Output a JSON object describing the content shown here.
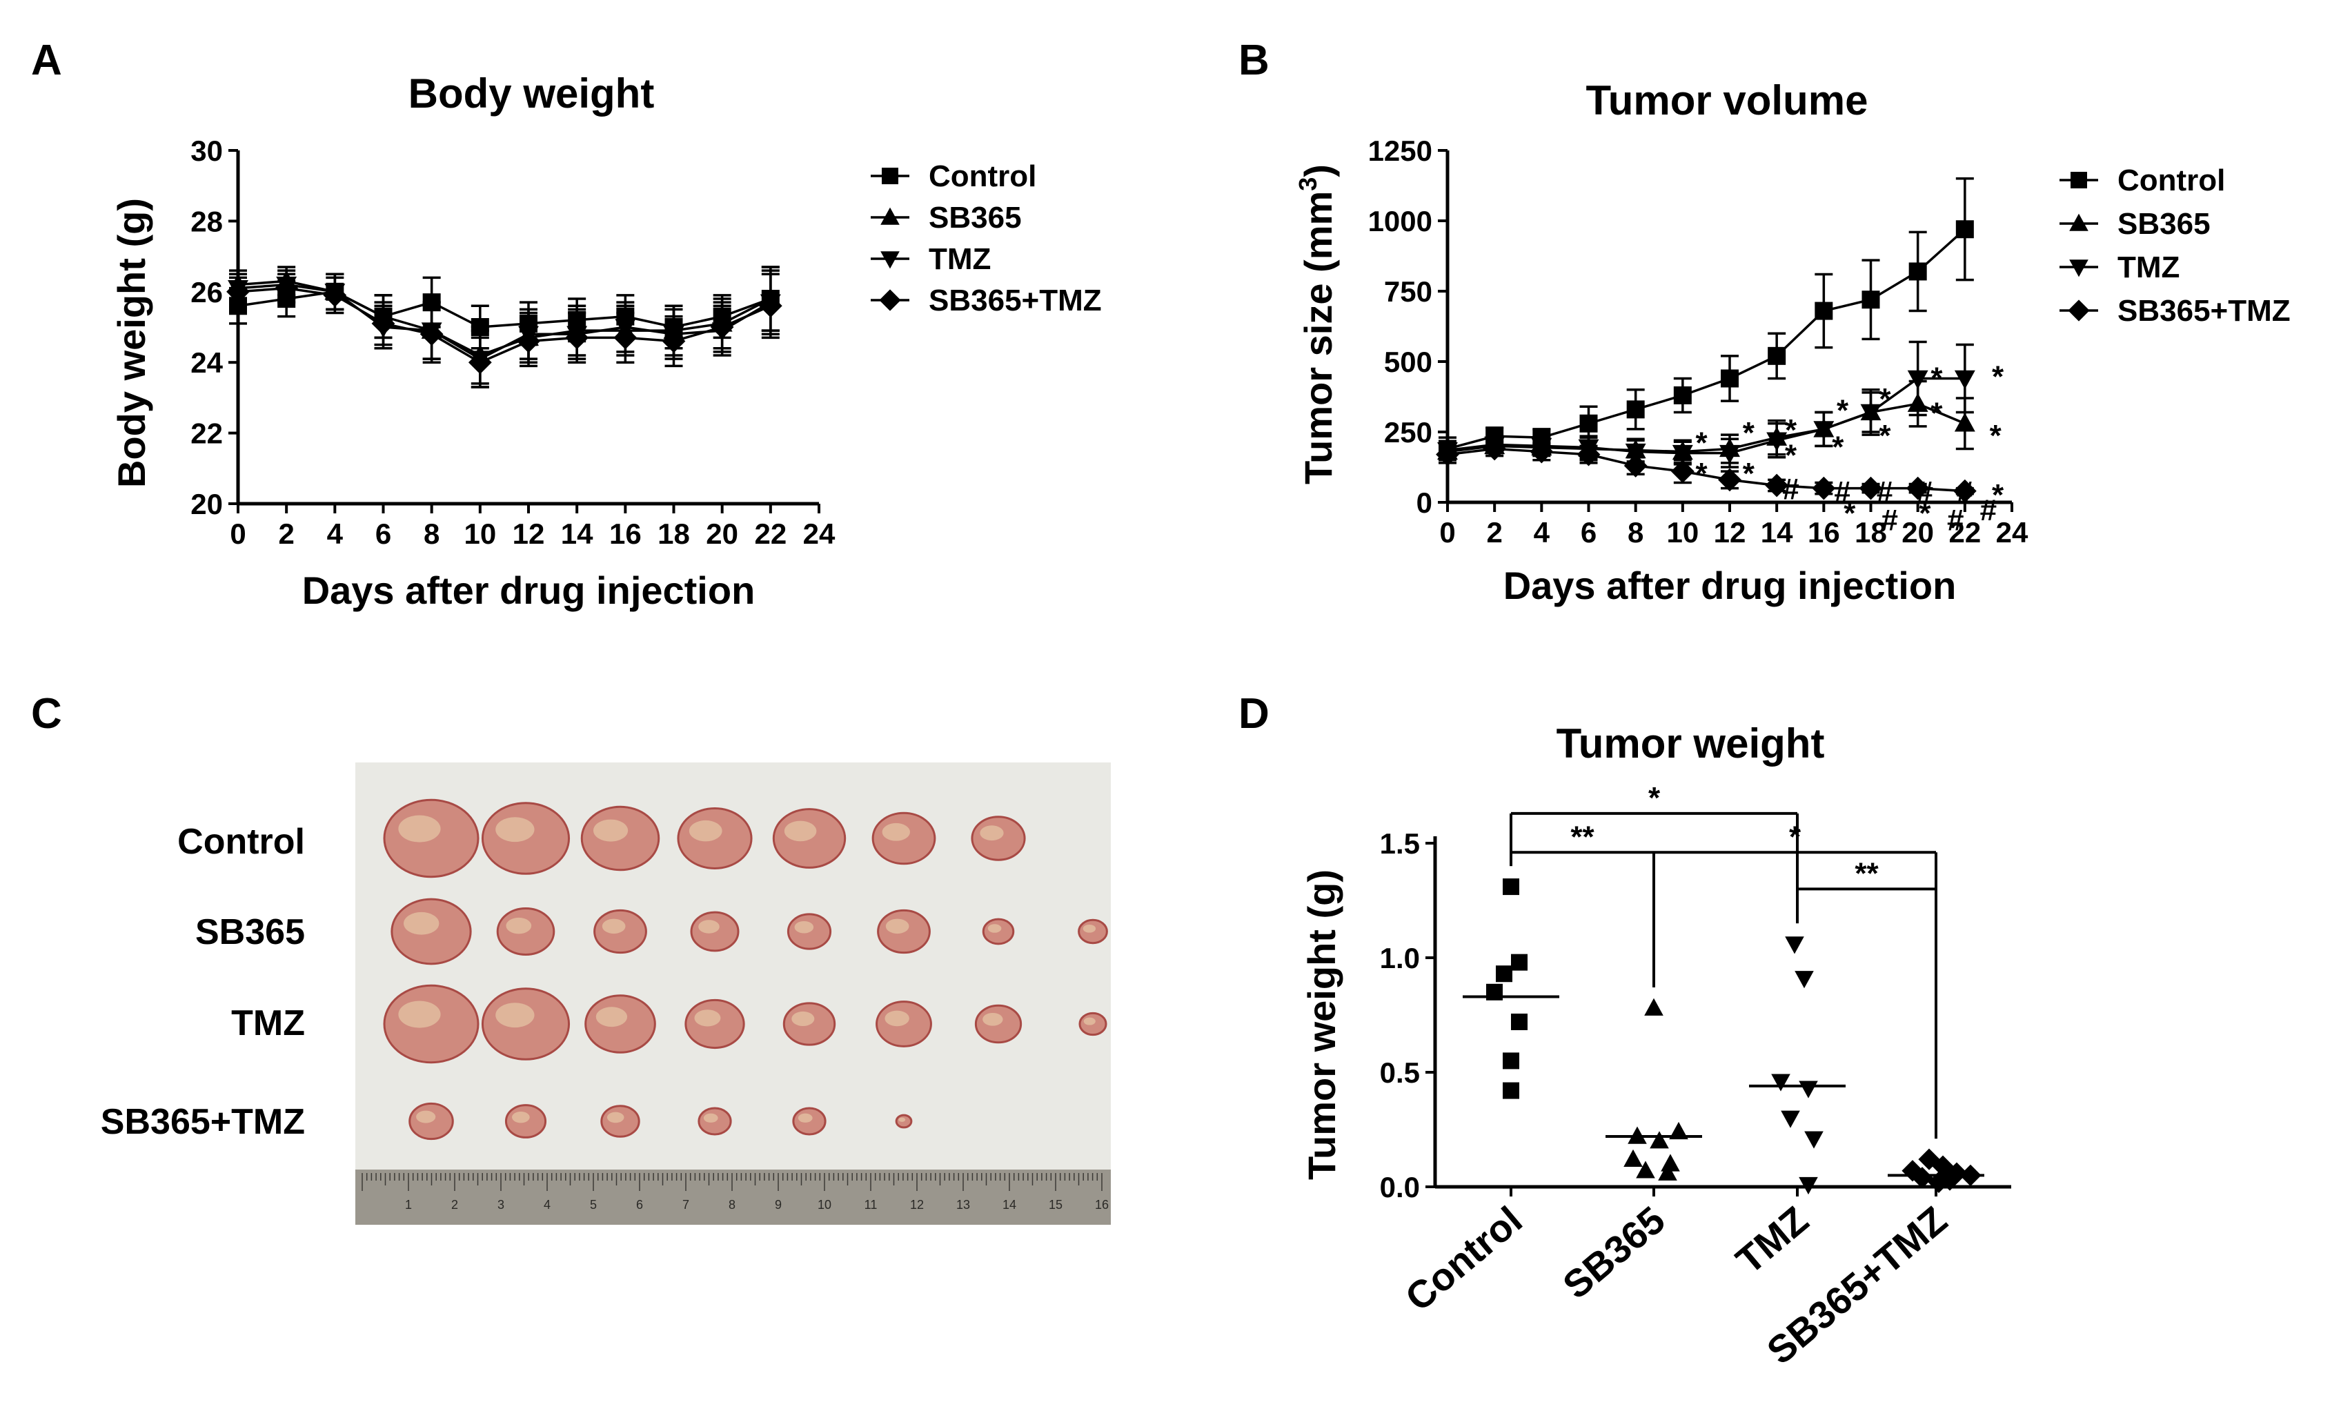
{
  "colors": {
    "ink": "#000000",
    "background": "#ffffff",
    "photo_bg": "#e9e9e4",
    "tumor": "#cf8a7e",
    "tumor_dark": "#a84a45",
    "tumor_light": "#e6c7a6",
    "ruler": "#9a968d"
  },
  "panels": {
    "A": "A",
    "B": "B",
    "C": "C",
    "D": "D"
  },
  "chart_data": [
    {
      "id": "body_weight",
      "type": "line",
      "title": "Body weight",
      "xlabel": "Days after drug injection",
      "ylabel": "Body weight (g)",
      "xlim": [
        0,
        24
      ],
      "ylim": [
        20,
        30
      ],
      "xticks": [
        "0",
        "2",
        "4",
        "6",
        "8",
        "10",
        "12",
        "14",
        "16",
        "18",
        "20",
        "22",
        "24"
      ],
      "yticks": [
        "20",
        "22",
        "24",
        "26",
        "28",
        "30"
      ],
      "x": [
        0,
        2,
        4,
        6,
        8,
        10,
        12,
        14,
        16,
        18,
        20,
        22
      ],
      "legend": [
        "Control",
        "SB365",
        "TMZ",
        "SB365+TMZ"
      ],
      "series": [
        {
          "name": "Control",
          "marker": "square",
          "values": [
            25.6,
            25.8,
            26.0,
            25.3,
            25.7,
            25.0,
            25.1,
            25.2,
            25.3,
            25.0,
            25.3,
            25.8
          ],
          "errors": [
            0.5,
            0.5,
            0.5,
            0.6,
            0.7,
            0.6,
            0.6,
            0.6,
            0.6,
            0.6,
            0.6,
            0.9
          ]
        },
        {
          "name": "SB365",
          "marker": "triangle-up",
          "values": [
            26.2,
            26.3,
            26.0,
            25.3,
            24.9,
            24.2,
            24.7,
            24.9,
            24.9,
            24.9,
            25.1,
            25.8
          ],
          "errors": [
            0.4,
            0.4,
            0.5,
            0.6,
            0.8,
            0.8,
            0.7,
            0.7,
            0.7,
            0.7,
            0.7,
            0.9
          ]
        },
        {
          "name": "TMZ",
          "marker": "triangle-down",
          "values": [
            26.1,
            26.2,
            26.0,
            25.0,
            24.9,
            24.1,
            24.8,
            24.8,
            25.0,
            24.8,
            24.9,
            25.7
          ],
          "errors": [
            0.4,
            0.4,
            0.5,
            0.6,
            0.8,
            0.8,
            0.7,
            0.7,
            0.7,
            0.7,
            0.7,
            0.9
          ]
        },
        {
          "name": "SB365+TMZ",
          "marker": "diamond",
          "values": [
            26.0,
            26.1,
            25.9,
            25.1,
            24.8,
            24.0,
            24.6,
            24.7,
            24.7,
            24.6,
            25.0,
            25.6
          ],
          "errors": [
            0.4,
            0.4,
            0.5,
            0.6,
            0.8,
            0.7,
            0.7,
            0.7,
            0.7,
            0.7,
            0.7,
            0.9
          ]
        }
      ]
    },
    {
      "id": "tumor_volume",
      "type": "line",
      "title": "Tumor volume",
      "xlabel": "Days after drug injection",
      "ylabel": "Tumor size (mm",
      "ylabel_sup": "3",
      "ylabel_end": ")",
      "xlim": [
        0,
        24
      ],
      "ylim": [
        0,
        1250
      ],
      "xticks": [
        "0",
        "2",
        "4",
        "6",
        "8",
        "10",
        "12",
        "14",
        "16",
        "18",
        "20",
        "22",
        "24"
      ],
      "yticks": [
        "0",
        "250",
        "500",
        "750",
        "1000",
        "1250"
      ],
      "x": [
        0,
        2,
        4,
        6,
        8,
        10,
        12,
        14,
        16,
        18,
        20,
        22
      ],
      "legend": [
        "Control",
        "SB365",
        "TMZ",
        "SB365+TMZ"
      ],
      "series": [
        {
          "name": "Control",
          "marker": "square",
          "values": [
            190,
            235,
            230,
            280,
            330,
            380,
            440,
            520,
            680,
            720,
            820,
            970
          ],
          "errors": [
            40,
            30,
            30,
            60,
            70,
            60,
            80,
            80,
            130,
            140,
            140,
            180
          ]
        },
        {
          "name": "SB365",
          "marker": "triangle-up",
          "values": [
            180,
            200,
            195,
            190,
            185,
            180,
            190,
            230,
            260,
            320,
            350,
            280
          ],
          "errors": [
            30,
            25,
            30,
            40,
            40,
            40,
            50,
            60,
            60,
            70,
            80,
            90
          ]
        },
        {
          "name": "TMZ",
          "marker": "triangle-down",
          "values": [
            185,
            205,
            200,
            195,
            180,
            175,
            175,
            220,
            260,
            320,
            440,
            440
          ],
          "errors": [
            30,
            25,
            30,
            40,
            40,
            40,
            50,
            60,
            60,
            80,
            130,
            120
          ]
        },
        {
          "name": "SB365+TMZ",
          "marker": "diamond",
          "values": [
            170,
            190,
            180,
            170,
            130,
            110,
            80,
            60,
            50,
            50,
            50,
            40
          ],
          "errors": [
            30,
            25,
            30,
            30,
            30,
            40,
            30,
            20,
            20,
            15,
            15,
            10
          ]
        }
      ],
      "annotations": [
        {
          "text": "*",
          "x": 10.8,
          "y": 215
        },
        {
          "text": "*",
          "x": 12.8,
          "y": 250
        },
        {
          "text": "*",
          "x": 14.6,
          "y": 260
        },
        {
          "text": "*",
          "x": 16.8,
          "y": 330
        },
        {
          "text": "*",
          "x": 18.6,
          "y": 370
        },
        {
          "text": "*",
          "x": 20.8,
          "y": 445
        },
        {
          "text": "*",
          "x": 23.4,
          "y": 450
        },
        {
          "text": "*",
          "x": 10.8,
          "y": 105
        },
        {
          "text": "*",
          "x": 12.8,
          "y": 105
        },
        {
          "text": "*",
          "x": 14.6,
          "y": 170
        },
        {
          "text": "*",
          "x": 16.6,
          "y": 200
        },
        {
          "text": "*",
          "x": 18.6,
          "y": 240
        },
        {
          "text": "*",
          "x": 20.8,
          "y": 320
        },
        {
          "text": "*",
          "x": 23.3,
          "y": 240
        },
        {
          "text": "#",
          "x": 14.6,
          "y": 50
        },
        {
          "text": "#",
          "x": 16.8,
          "y": 40
        },
        {
          "text": "#",
          "x": 18.6,
          "y": 40
        },
        {
          "text": "#",
          "x": 20.3,
          "y": 40
        },
        {
          "text": "#",
          "x": 22.0,
          "y": 40
        },
        {
          "text": "*",
          "x": 23.4,
          "y": 30
        },
        {
          "text": "*",
          "x": 17.1,
          "y": -35
        },
        {
          "text": "#",
          "x": 18.8,
          "y": -60
        },
        {
          "text": "*",
          "x": 20.3,
          "y": -35
        },
        {
          "text": "#",
          "x": 21.6,
          "y": -60
        },
        {
          "text": "#",
          "x": 23.0,
          "y": -25
        }
      ]
    },
    {
      "id": "tumor_weight",
      "type": "scatter",
      "title": "Tumor weight",
      "ylabel": "Tumor weight (g)",
      "ylim": [
        0,
        1.5
      ],
      "yticks": [
        "0.0",
        "0.5",
        "1.0",
        "1.5"
      ],
      "categories": [
        "Control",
        "SB365",
        "TMZ",
        "SB365+TMZ"
      ],
      "series": [
        {
          "name": "Control",
          "marker": "square",
          "points": [
            1.31,
            0.98,
            0.93,
            0.85,
            0.72,
            0.55,
            0.42
          ],
          "xoff": [
            0,
            0.06,
            -0.05,
            -0.12,
            0.06,
            0,
            0
          ],
          "mean": 0.83
        },
        {
          "name": "SB365",
          "marker": "triangle-up",
          "points": [
            0.78,
            0.24,
            0.22,
            0.2,
            0.12,
            0.1,
            0.07,
            0.06
          ],
          "xoff": [
            0,
            0.18,
            -0.12,
            0.04,
            -0.15,
            0.12,
            -0.06,
            0.1
          ],
          "mean": 0.22
        },
        {
          "name": "TMZ",
          "marker": "triangle-down",
          "points": [
            1.06,
            0.91,
            0.46,
            0.43,
            0.3,
            0.21,
            0.01
          ],
          "xoff": [
            -0.02,
            0.05,
            -0.12,
            0.08,
            -0.05,
            0.12,
            0.08
          ],
          "mean": 0.44
        },
        {
          "name": "SB365+TMZ",
          "marker": "diamond",
          "points": [
            0.12,
            0.09,
            0.07,
            0.06,
            0.05,
            0.04,
            0.03,
            0.02
          ],
          "xoff": [
            -0.05,
            0.05,
            -0.17,
            0.15,
            0.25,
            -0.1,
            0.1,
            0.02
          ],
          "mean": 0.05
        }
      ],
      "comparisons": [
        {
          "a": 0,
          "b": 2,
          "y": 1.63,
          "label": "*"
        },
        {
          "a": 0,
          "b": 1,
          "y": 1.46,
          "label": "**"
        },
        {
          "a": 1,
          "b": 3,
          "y": 1.46,
          "label": "*"
        },
        {
          "a": 2,
          "b": 3,
          "y": 1.3,
          "label": "**"
        }
      ]
    }
  ],
  "photo": {
    "rows": [
      "Control",
      "SB365",
      "TMZ",
      "SB365+TMZ"
    ],
    "counts": [
      7,
      8,
      8,
      6
    ],
    "sizes": [
      [
        1.0,
        0.92,
        0.82,
        0.78,
        0.76,
        0.66,
        0.56
      ],
      [
        0.84,
        0.6,
        0.55,
        0.5,
        0.45,
        0.55,
        0.32,
        0.3
      ],
      [
        1.0,
        0.92,
        0.74,
        0.62,
        0.54,
        0.58,
        0.48,
        0.28
      ],
      [
        0.46,
        0.42,
        0.4,
        0.34,
        0.34,
        0.16
      ]
    ],
    "ruler_numbers": [
      "1",
      "2",
      "3",
      "4",
      "5",
      "6",
      "7",
      "8",
      "9",
      "10",
      "11",
      "12",
      "13",
      "14",
      "15",
      "16"
    ]
  }
}
